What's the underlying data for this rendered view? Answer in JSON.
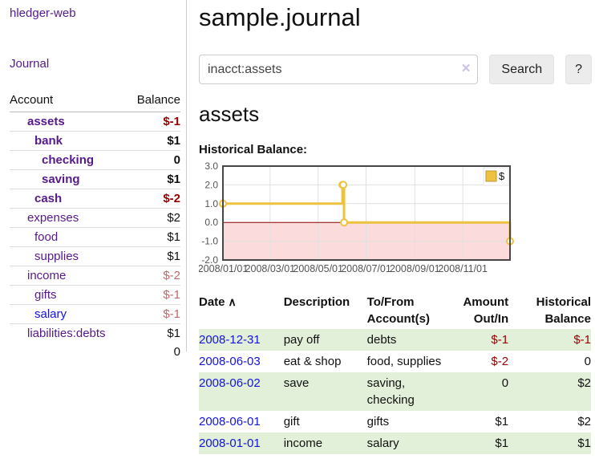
{
  "app": {
    "brand": "hledger-web"
  },
  "nav": {
    "journal": "Journal"
  },
  "sidebar": {
    "headers": {
      "account": "Account",
      "balance": "Balance"
    },
    "accounts": [
      {
        "name": "assets",
        "indent": 1,
        "bold": true,
        "balance": "$-1",
        "balance_class": "neg"
      },
      {
        "name": "bank",
        "indent": 2,
        "bold": true,
        "balance": "$1",
        "balance_class": ""
      },
      {
        "name": "checking",
        "indent": 3,
        "bold": true,
        "balance": "0",
        "balance_class": ""
      },
      {
        "name": "saving",
        "indent": 3,
        "bold": true,
        "balance": "$1",
        "balance_class": ""
      },
      {
        "name": "cash",
        "indent": 2,
        "bold": true,
        "balance": "$-2",
        "balance_class": "neg"
      },
      {
        "name": "expenses",
        "indent": 1,
        "bold": false,
        "balance": "$2",
        "balance_class": ""
      },
      {
        "name": "food",
        "indent": 2,
        "bold": false,
        "balance": "$1",
        "balance_class": ""
      },
      {
        "name": "supplies",
        "indent": 2,
        "bold": false,
        "balance": "$1",
        "balance_class": ""
      },
      {
        "name": "income",
        "indent": 1,
        "bold": false,
        "balance": "$-2",
        "balance_class": "negfade"
      },
      {
        "name": "gifts",
        "indent": 2,
        "bold": false,
        "balance": "$-1",
        "balance_class": "negfade"
      },
      {
        "name": "salary",
        "indent": 2,
        "bold": false,
        "balance": "$-1",
        "balance_class": "negfade",
        "link_color": "blue"
      },
      {
        "name": "liabilities:debts",
        "indent": 1,
        "bold": false,
        "balance": "$1",
        "balance_class": ""
      }
    ],
    "total": "0"
  },
  "header": {
    "title": "sample.journal"
  },
  "search": {
    "value": "inacct:assets",
    "clear_icon": "✕",
    "button_label": "Search",
    "help_label": "?"
  },
  "account_page": {
    "heading": "assets",
    "chart_label": "Historical Balance:"
  },
  "chart_data": {
    "type": "line",
    "steps": true,
    "series": [
      {
        "name": "$",
        "color": "#edc240",
        "points": [
          [
            "2008-01-01",
            1
          ],
          [
            "2008-06-01",
            2
          ],
          [
            "2008-06-02",
            2
          ],
          [
            "2008-06-03",
            0
          ],
          [
            "2008-12-31",
            -1
          ]
        ]
      }
    ],
    "x_ticks": [
      "2008/01/01",
      "2008/03/01",
      "2008/05/01",
      "2008/07/01",
      "2008/09/01",
      "2008/11/01"
    ],
    "y_ticks": [
      "3.0",
      "2.0",
      "1.0",
      "0.0",
      "-1.0",
      "-2.0"
    ],
    "ylim": [
      -2,
      3
    ],
    "x_domain_days": 365,
    "grid": true,
    "legend_position": "top-right",
    "colors": {
      "line": "#edc240",
      "negative_region": "#fbdbdb",
      "zero_line": "#8b0000",
      "gridline": "#e0e0e0",
      "border": "#474747",
      "tick_text": "#545454"
    }
  },
  "transactions": {
    "sort_icon": "∧",
    "headers": [
      {
        "label": "Date",
        "align": "l"
      },
      {
        "label": "Description",
        "align": "l"
      },
      {
        "label": "To/From Account(s)",
        "align": "l"
      },
      {
        "label": "Amount Out/In",
        "align": "r"
      },
      {
        "label": "Historical Balance",
        "align": "r"
      }
    ],
    "rows": [
      {
        "date": "2008-12-31",
        "description": "pay off",
        "accounts": "debts",
        "amount": "$-1",
        "amount_class": "neg",
        "balance": "$-1",
        "balance_class": "neg"
      },
      {
        "date": "2008-06-03",
        "description": "eat & shop",
        "accounts": "food, supplies",
        "amount": "$-2",
        "amount_class": "neg",
        "balance": "0",
        "balance_class": ""
      },
      {
        "date": "2008-06-02",
        "description": "save",
        "accounts": "saving, checking",
        "amount": "0",
        "amount_class": "",
        "balance": "$2",
        "balance_class": ""
      },
      {
        "date": "2008-06-01",
        "description": "gift",
        "accounts": "gifts",
        "amount": "$1",
        "amount_class": "",
        "balance": "$2",
        "balance_class": ""
      },
      {
        "date": "2008-01-01",
        "description": "income",
        "accounts": "salary",
        "amount": "$1",
        "amount_class": "",
        "balance": "$1",
        "balance_class": ""
      }
    ]
  }
}
